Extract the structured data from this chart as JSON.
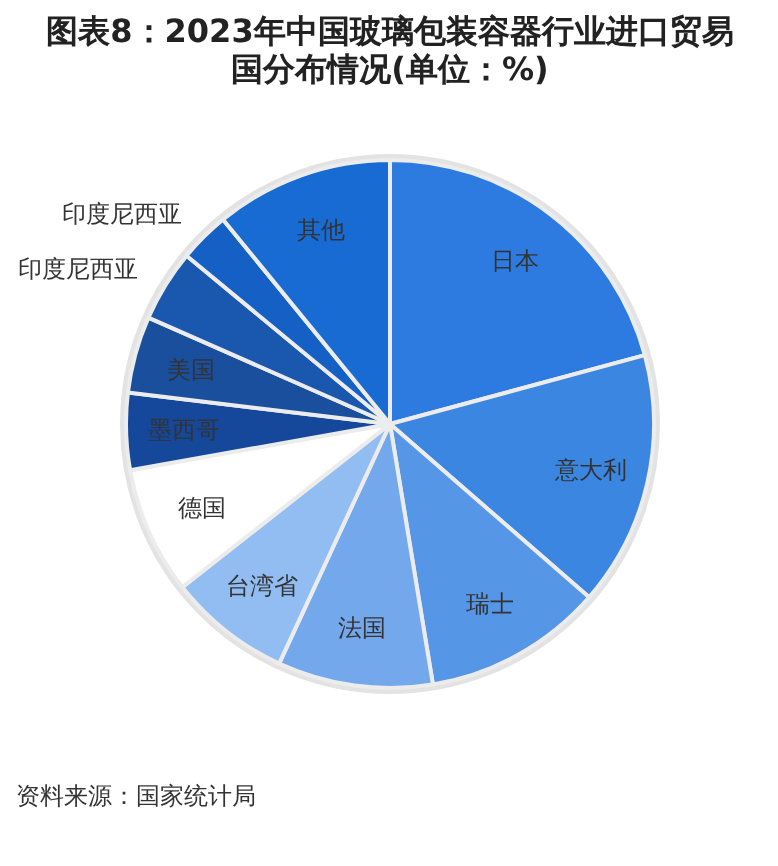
{
  "chart_data": {
    "type": "pie",
    "title": "图表8：2023年中国玻璃包装容器行业进口贸易国分布情况(单位：%)",
    "categories": [
      "日本",
      "意大利",
      "瑞士",
      "法国",
      "台湾省",
      "德国",
      "墨西哥",
      "美国",
      "印度尼西亚",
      "印度尼西亚",
      "其他"
    ],
    "values": [
      20.8,
      15.6,
      11,
      9.5,
      7.5,
      7.8,
      4.7,
      4.7,
      4.4,
      3.1,
      10.9
    ],
    "colors": [
      "#2d7be0",
      "#3a86e0",
      "#5596e6",
      "#74a8ec",
      "#92bdf2",
      "#ffffff",
      "#15479a",
      "#1a4f9e",
      "#1a58b0",
      "#1560c4",
      "#176bd3"
    ],
    "annotations": [
      "资料来源：国家统计局"
    ]
  }
}
